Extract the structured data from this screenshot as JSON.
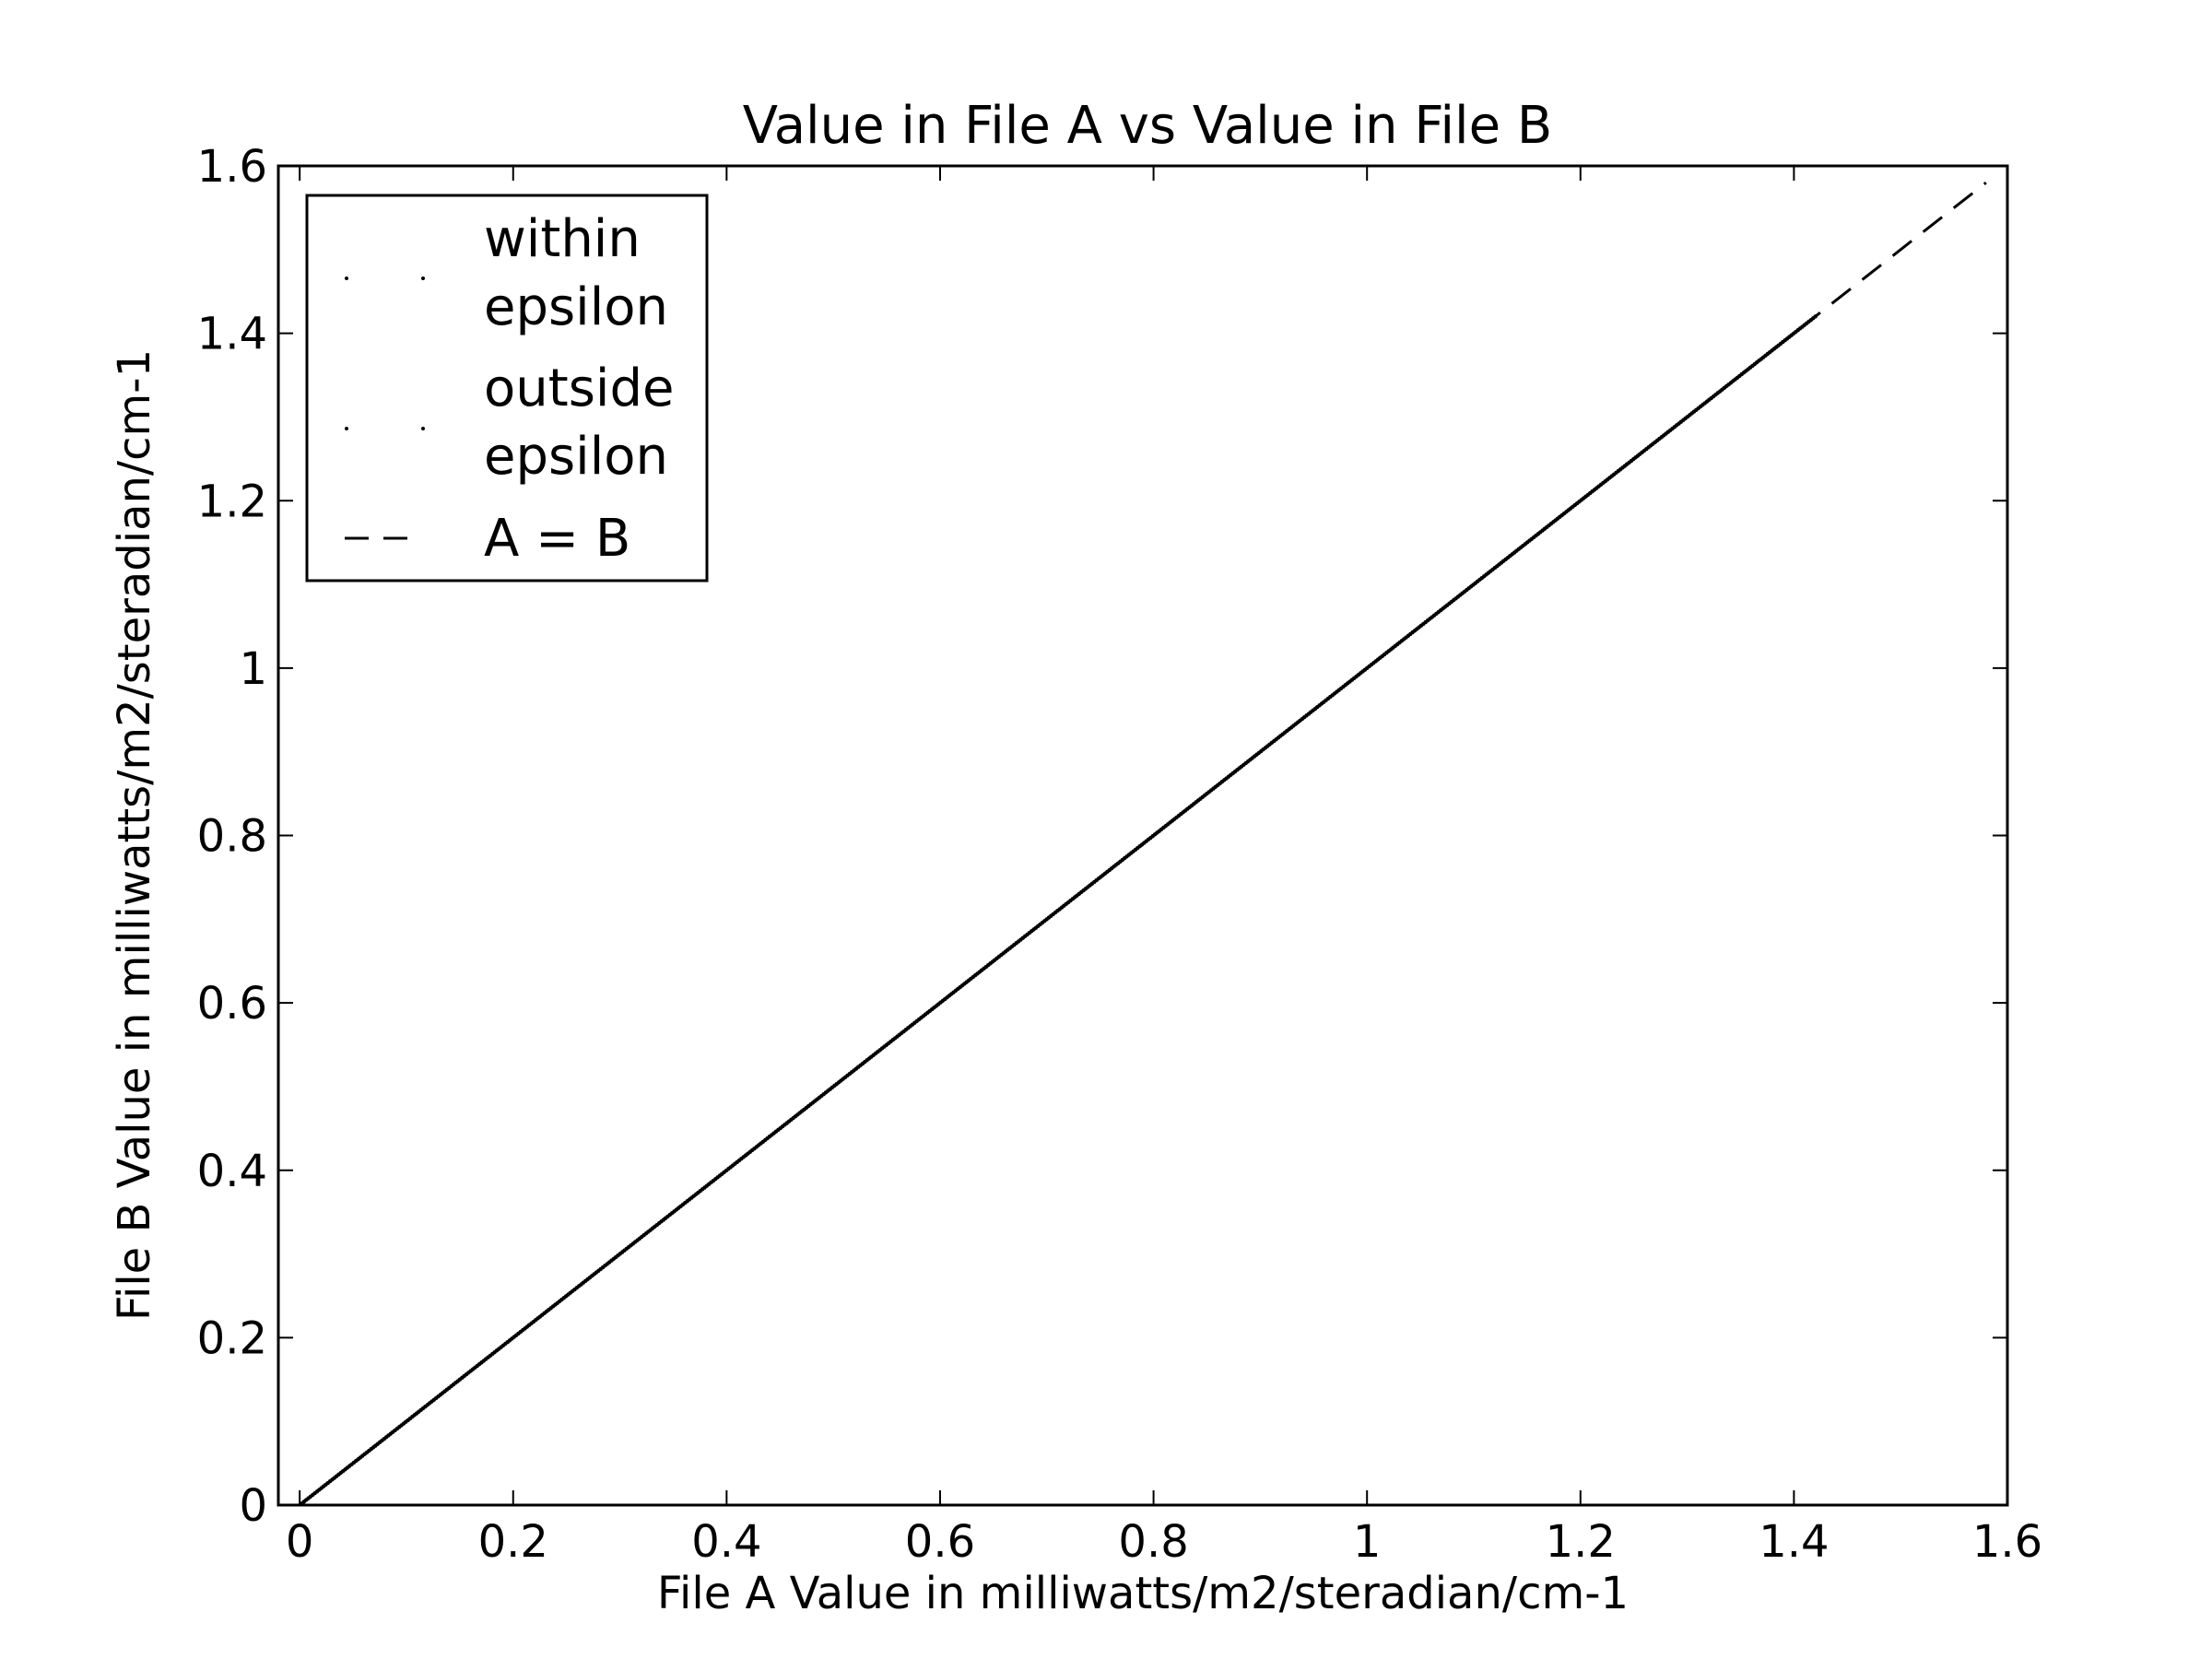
{
  "chart_data": {
    "type": "scatter",
    "title": "Value in File A vs Value in File B",
    "xlabel": "File A Value in milliwatts/m2/steradian/cm-1",
    "ylabel": "File B Value in milliwatts/m2/steradian/cm-1",
    "xlim": [
      -0.02,
      1.6
    ],
    "ylim": [
      0,
      1.6
    ],
    "xticks": [
      0,
      0.2,
      0.4,
      0.6,
      0.8,
      1.0,
      1.2,
      1.4,
      1.6
    ],
    "yticks": [
      0,
      0.2,
      0.4,
      0.6,
      0.8,
      1.0,
      1.2,
      1.4,
      1.6
    ],
    "xtick_labels": [
      "0",
      "0.2",
      "0.4",
      "0.6",
      "0.8",
      "1",
      "1.2",
      "1.4",
      "1.6"
    ],
    "ytick_labels": [
      "0",
      "0.2",
      "0.4",
      "0.6",
      "0.8",
      "1",
      "1.2",
      "1.4",
      "1.6"
    ],
    "grid": false,
    "legend_position": "top-left",
    "legend": [
      {
        "label_lines": [
          "within",
          "epsilon"
        ],
        "marker": "point"
      },
      {
        "label_lines": [
          "outside",
          "epsilon"
        ],
        "marker": "point"
      },
      {
        "label_lines": [
          "A = B"
        ],
        "marker": "dashed-line"
      }
    ],
    "series": [
      {
        "name": "within epsilon",
        "x_range": [
          0.0,
          1.42
        ],
        "relation": "y = x",
        "color": "#000000"
      },
      {
        "name": "outside epsilon",
        "x": [],
        "y": [],
        "color": "#000000"
      },
      {
        "name": "A = B",
        "x": [
          -0.02,
          1.58
        ],
        "y": [
          -0.02,
          1.58
        ],
        "style": "dashed",
        "color": "#000000"
      }
    ]
  }
}
